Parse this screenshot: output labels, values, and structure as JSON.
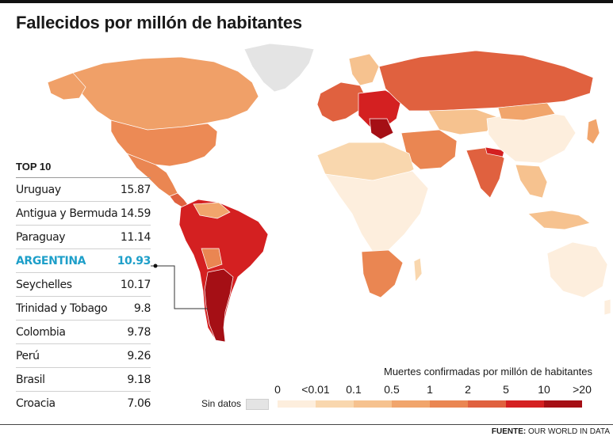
{
  "title": "Fallecidos por millón de habitantes",
  "top10": {
    "heading": "TOP 10",
    "rows": [
      {
        "country": "Uruguay",
        "value": "15.87",
        "highlight": false
      },
      {
        "country": "Antigua y Bermuda",
        "value": "14.59",
        "highlight": false
      },
      {
        "country": "Paraguay",
        "value": "11.14",
        "highlight": false
      },
      {
        "country": "ARGENTINA",
        "value": "10.93",
        "highlight": true
      },
      {
        "country": "Seychelles",
        "value": "10.17",
        "highlight": false
      },
      {
        "country": "Trinidad y Tobago",
        "value": "9.8",
        "highlight": false
      },
      {
        "country": "Colombia",
        "value": "9.78",
        "highlight": false
      },
      {
        "country": "Perú",
        "value": "9.26",
        "highlight": false
      },
      {
        "country": "Brasil",
        "value": "9.18",
        "highlight": false
      },
      {
        "country": "Croacia",
        "value": "7.06",
        "highlight": false
      }
    ]
  },
  "legend": {
    "title": "Muertes confirmadas por millón de habitantes",
    "ticks": [
      "0",
      "<0.01",
      "0.1",
      "0.5",
      "1",
      "2",
      "5",
      "10",
      ">20"
    ],
    "colors": [
      "#fdeedd",
      "#f9d7ae",
      "#f6c28f",
      "#f1a56c",
      "#ea8652",
      "#e0613f",
      "#d42021",
      "#a50f15"
    ],
    "no_data_label": "Sin datos",
    "no_data_color": "#e4e4e4"
  },
  "highlight_color": "#1e9fc9",
  "source": {
    "label": "FUENTE:",
    "text": "OUR WORLD IN DATA"
  }
}
